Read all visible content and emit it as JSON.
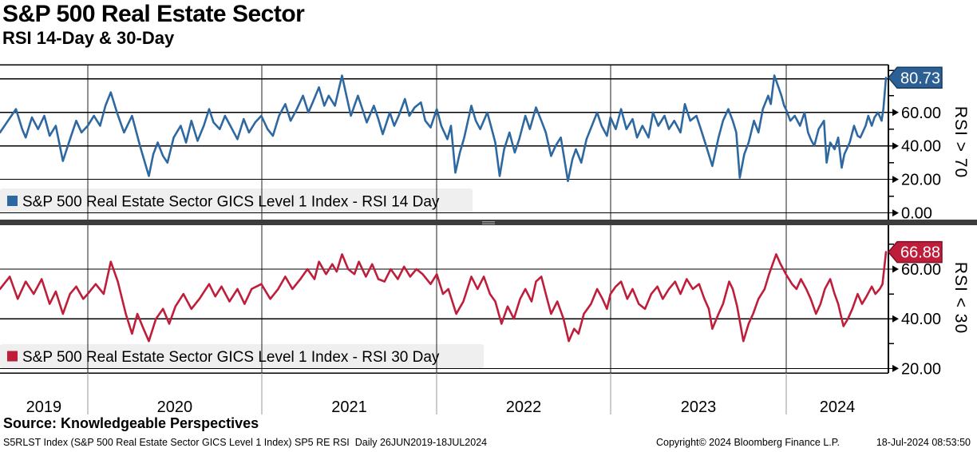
{
  "header": {
    "title": "S&P 500 Real Estate Sector",
    "subtitle": "RSI 14-Day & 30-Day"
  },
  "colors": {
    "rsi14_blue": "#2e68a0",
    "rsi14_badge": "#2c5f94",
    "rsi14_badge_border": "#123c66",
    "rsi30_red": "#bf1e3b",
    "rsi30_badge": "#bf1e3b",
    "rsi30_badge_border": "#7d0e24",
    "legend_bg": "#efefef",
    "divider": "#3c3c3c",
    "grid": "#000000"
  },
  "x_axis": {
    "year_labels": [
      "2019",
      "2020",
      "2021",
      "2022",
      "2023",
      "2024"
    ],
    "year_boundaries_t": [
      0.099,
      0.2955,
      0.4928,
      0.6892,
      0.8874
    ],
    "range": "26JUN2019-18JUL2024"
  },
  "chart_data": [
    {
      "type": "line",
      "id": "rsi14",
      "legend": "S&P 500 Real Estate Sector GICS Level 1 Index - RSI 14 Day",
      "color": "#2e68a0",
      "badge_color": "#2c5f94",
      "badge_border": "#123c66",
      "last_value": 80.73,
      "last_value_label": "80.73",
      "side_label": "RSI > 70",
      "ylim": [
        -4.5,
        88.5
      ],
      "yticks": [
        {
          "v": 0,
          "label": "0.00"
        },
        {
          "v": 20,
          "label": "20.00"
        },
        {
          "v": 40,
          "label": "40.00"
        },
        {
          "v": 60,
          "label": "60.00"
        },
        {
          "v": 80,
          "label": ""
        }
      ],
      "yticks_minor": [
        10,
        30,
        50,
        70,
        85
      ],
      "points": [
        [
          0.0,
          48
        ],
        [
          0.009,
          55
        ],
        [
          0.018,
          62
        ],
        [
          0.025,
          50
        ],
        [
          0.029,
          45
        ],
        [
          0.036,
          57
        ],
        [
          0.043,
          50
        ],
        [
          0.05,
          58
        ],
        [
          0.056,
          46
        ],
        [
          0.063,
          52
        ],
        [
          0.071,
          31
        ],
        [
          0.079,
          44
        ],
        [
          0.086,
          55
        ],
        [
          0.092,
          48
        ],
        [
          0.099,
          52
        ],
        [
          0.106,
          58
        ],
        [
          0.113,
          52
        ],
        [
          0.119,
          64
        ],
        [
          0.125,
          72
        ],
        [
          0.132,
          60
        ],
        [
          0.14,
          48
        ],
        [
          0.149,
          58
        ],
        [
          0.158,
          40
        ],
        [
          0.168,
          22
        ],
        [
          0.173,
          35
        ],
        [
          0.178,
          42
        ],
        [
          0.184,
          34
        ],
        [
          0.189,
          30
        ],
        [
          0.196,
          45
        ],
        [
          0.204,
          52
        ],
        [
          0.21,
          42
        ],
        [
          0.216,
          55
        ],
        [
          0.223,
          43
        ],
        [
          0.23,
          52
        ],
        [
          0.236,
          62
        ],
        [
          0.241,
          54
        ],
        [
          0.248,
          50
        ],
        [
          0.254,
          58
        ],
        [
          0.261,
          51
        ],
        [
          0.268,
          44
        ],
        [
          0.275,
          56
        ],
        [
          0.281,
          48
        ],
        [
          0.288,
          54
        ],
        [
          0.295,
          58
        ],
        [
          0.302,
          50
        ],
        [
          0.308,
          46
        ],
        [
          0.315,
          58
        ],
        [
          0.322,
          65
        ],
        [
          0.328,
          55
        ],
        [
          0.335,
          62
        ],
        [
          0.342,
          70
        ],
        [
          0.348,
          60
        ],
        [
          0.353,
          66
        ],
        [
          0.36,
          75
        ],
        [
          0.366,
          64
        ],
        [
          0.371,
          70
        ],
        [
          0.378,
          64
        ],
        [
          0.386,
          82
        ],
        [
          0.391,
          70
        ],
        [
          0.396,
          58
        ],
        [
          0.404,
          70
        ],
        [
          0.409,
          62
        ],
        [
          0.414,
          54
        ],
        [
          0.422,
          64
        ],
        [
          0.427,
          56
        ],
        [
          0.432,
          47
        ],
        [
          0.44,
          60
        ],
        [
          0.445,
          52
        ],
        [
          0.45,
          58
        ],
        [
          0.457,
          68
        ],
        [
          0.462,
          58
        ],
        [
          0.468,
          63
        ],
        [
          0.475,
          66
        ],
        [
          0.48,
          55
        ],
        [
          0.486,
          51
        ],
        [
          0.493,
          62
        ],
        [
          0.498,
          52
        ],
        [
          0.505,
          44
        ],
        [
          0.509,
          52
        ],
        [
          0.514,
          24
        ],
        [
          0.519,
          36
        ],
        [
          0.524,
          45
        ],
        [
          0.532,
          64
        ],
        [
          0.537,
          55
        ],
        [
          0.542,
          50
        ],
        [
          0.55,
          60
        ],
        [
          0.555,
          50
        ],
        [
          0.559,
          42
        ],
        [
          0.564,
          22
        ],
        [
          0.569,
          38
        ],
        [
          0.575,
          48
        ],
        [
          0.581,
          36
        ],
        [
          0.586,
          44
        ],
        [
          0.593,
          58
        ],
        [
          0.598,
          50
        ],
        [
          0.605,
          63
        ],
        [
          0.611,
          55
        ],
        [
          0.616,
          48
        ],
        [
          0.622,
          34
        ],
        [
          0.627,
          40
        ],
        [
          0.633,
          45
        ],
        [
          0.641,
          19
        ],
        [
          0.646,
          32
        ],
        [
          0.65,
          38
        ],
        [
          0.656,
          30
        ],
        [
          0.662,
          44
        ],
        [
          0.668,
          52
        ],
        [
          0.674,
          60
        ],
        [
          0.679,
          52
        ],
        [
          0.685,
          46
        ],
        [
          0.689,
          57
        ],
        [
          0.695,
          50
        ],
        [
          0.701,
          62
        ],
        [
          0.707,
          50
        ],
        [
          0.714,
          56
        ],
        [
          0.719,
          45
        ],
        [
          0.725,
          52
        ],
        [
          0.732,
          45
        ],
        [
          0.737,
          60
        ],
        [
          0.743,
          52
        ],
        [
          0.75,
          58
        ],
        [
          0.755,
          50
        ],
        [
          0.761,
          55
        ],
        [
          0.768,
          48
        ],
        [
          0.773,
          65
        ],
        [
          0.779,
          55
        ],
        [
          0.786,
          58
        ],
        [
          0.791,
          50
        ],
        [
          0.797,
          40
        ],
        [
          0.804,
          28
        ],
        [
          0.811,
          45
        ],
        [
          0.816,
          55
        ],
        [
          0.822,
          62
        ],
        [
          0.827,
          55
        ],
        [
          0.831,
          48
        ],
        [
          0.835,
          21
        ],
        [
          0.84,
          35
        ],
        [
          0.845,
          42
        ],
        [
          0.851,
          55
        ],
        [
          0.856,
          48
        ],
        [
          0.861,
          62
        ],
        [
          0.867,
          70
        ],
        [
          0.87,
          65
        ],
        [
          0.874,
          82
        ],
        [
          0.878,
          76
        ],
        [
          0.882,
          70
        ],
        [
          0.885,
          64
        ],
        [
          0.887,
          62
        ],
        [
          0.892,
          55
        ],
        [
          0.897,
          58
        ],
        [
          0.903,
          52
        ],
        [
          0.908,
          60
        ],
        [
          0.912,
          48
        ],
        [
          0.915,
          44
        ],
        [
          0.919,
          40
        ],
        [
          0.924,
          50
        ],
        [
          0.93,
          55
        ],
        [
          0.933,
          30
        ],
        [
          0.937,
          42
        ],
        [
          0.942,
          38
        ],
        [
          0.946,
          45
        ],
        [
          0.95,
          27
        ],
        [
          0.953,
          35
        ],
        [
          0.959,
          42
        ],
        [
          0.964,
          52
        ],
        [
          0.968,
          46
        ],
        [
          0.971,
          45
        ],
        [
          0.977,
          52
        ],
        [
          0.98,
          58
        ],
        [
          0.984,
          52
        ],
        [
          0.987,
          57
        ],
        [
          0.991,
          60
        ],
        [
          0.995,
          55
        ],
        [
          0.997,
          62
        ],
        [
          1.0,
          80.73
        ]
      ]
    },
    {
      "type": "line",
      "id": "rsi30",
      "legend": "S&P 500 Real Estate Sector GICS Level 1 Index - RSI 30 Day",
      "color": "#bf1e3b",
      "badge_color": "#bf1e3b",
      "badge_border": "#7d0e24",
      "last_value": 66.88,
      "last_value_label": "66.88",
      "side_label": "RSI < 30",
      "ylim": [
        18.2,
        77.7
      ],
      "yticks": [
        {
          "v": 20,
          "label": "20.00"
        },
        {
          "v": 40,
          "label": "40.00"
        },
        {
          "v": 60,
          "label": "60.00"
        }
      ],
      "yticks_minor": [
        30,
        50,
        70
      ],
      "points": [
        [
          0.0,
          52
        ],
        [
          0.011,
          57
        ],
        [
          0.02,
          48
        ],
        [
          0.029,
          55
        ],
        [
          0.038,
          50
        ],
        [
          0.047,
          56
        ],
        [
          0.056,
          46
        ],
        [
          0.063,
          51
        ],
        [
          0.071,
          42
        ],
        [
          0.079,
          50
        ],
        [
          0.086,
          53
        ],
        [
          0.094,
          48
        ],
        [
          0.099,
          50
        ],
        [
          0.108,
          54
        ],
        [
          0.117,
          50
        ],
        [
          0.125,
          63
        ],
        [
          0.133,
          55
        ],
        [
          0.142,
          42
        ],
        [
          0.149,
          34
        ],
        [
          0.155,
          42
        ],
        [
          0.162,
          36
        ],
        [
          0.168,
          31
        ],
        [
          0.176,
          40
        ],
        [
          0.184,
          44
        ],
        [
          0.191,
          38
        ],
        [
          0.198,
          45
        ],
        [
          0.207,
          50
        ],
        [
          0.216,
          44
        ],
        [
          0.225,
          48
        ],
        [
          0.236,
          54
        ],
        [
          0.243,
          49
        ],
        [
          0.25,
          53
        ],
        [
          0.259,
          47
        ],
        [
          0.268,
          52
        ],
        [
          0.276,
          46
        ],
        [
          0.284,
          52
        ],
        [
          0.295,
          54
        ],
        [
          0.305,
          48
        ],
        [
          0.314,
          52
        ],
        [
          0.322,
          57
        ],
        [
          0.33,
          52
        ],
        [
          0.339,
          56
        ],
        [
          0.347,
          60
        ],
        [
          0.355,
          56
        ],
        [
          0.36,
          63
        ],
        [
          0.368,
          58
        ],
        [
          0.375,
          62
        ],
        [
          0.38,
          59
        ],
        [
          0.386,
          66
        ],
        [
          0.393,
          60
        ],
        [
          0.4,
          58
        ],
        [
          0.405,
          63
        ],
        [
          0.413,
          57
        ],
        [
          0.42,
          62
        ],
        [
          0.427,
          56
        ],
        [
          0.434,
          55
        ],
        [
          0.441,
          60
        ],
        [
          0.449,
          56
        ],
        [
          0.456,
          61
        ],
        [
          0.463,
          57
        ],
        [
          0.47,
          60
        ],
        [
          0.477,
          58
        ],
        [
          0.486,
          54
        ],
        [
          0.493,
          58
        ],
        [
          0.5,
          50
        ],
        [
          0.506,
          52
        ],
        [
          0.515,
          42
        ],
        [
          0.523,
          47
        ],
        [
          0.532,
          57
        ],
        [
          0.539,
          52
        ],
        [
          0.546,
          57
        ],
        [
          0.553,
          50
        ],
        [
          0.559,
          47
        ],
        [
          0.566,
          38
        ],
        [
          0.573,
          45
        ],
        [
          0.58,
          40
        ],
        [
          0.587,
          48
        ],
        [
          0.593,
          52
        ],
        [
          0.6,
          47
        ],
        [
          0.605,
          55
        ],
        [
          0.611,
          57
        ],
        [
          0.616,
          50
        ],
        [
          0.622,
          42
        ],
        [
          0.629,
          47
        ],
        [
          0.636,
          40
        ],
        [
          0.642,
          31
        ],
        [
          0.648,
          36
        ],
        [
          0.653,
          34
        ],
        [
          0.659,
          42
        ],
        [
          0.667,
          46
        ],
        [
          0.674,
          52
        ],
        [
          0.68,
          48
        ],
        [
          0.685,
          44
        ],
        [
          0.689,
          50
        ],
        [
          0.695,
          53
        ],
        [
          0.701,
          55
        ],
        [
          0.708,
          48
        ],
        [
          0.714,
          52
        ],
        [
          0.721,
          46
        ],
        [
          0.728,
          44
        ],
        [
          0.735,
          50
        ],
        [
          0.742,
          53
        ],
        [
          0.748,
          48
        ],
        [
          0.755,
          52
        ],
        [
          0.762,
          55
        ],
        [
          0.768,
          50
        ],
        [
          0.775,
          56
        ],
        [
          0.782,
          52
        ],
        [
          0.789,
          54
        ],
        [
          0.795,
          48
        ],
        [
          0.8,
          44
        ],
        [
          0.804,
          36
        ],
        [
          0.811,
          42
        ],
        [
          0.816,
          46
        ],
        [
          0.823,
          55
        ],
        [
          0.827,
          52
        ],
        [
          0.832,
          45
        ],
        [
          0.839,
          31
        ],
        [
          0.845,
          38
        ],
        [
          0.85,
          42
        ],
        [
          0.856,
          48
        ],
        [
          0.863,
          52
        ],
        [
          0.868,
          58
        ],
        [
          0.876,
          66
        ],
        [
          0.881,
          62
        ],
        [
          0.887,
          58
        ],
        [
          0.894,
          54
        ],
        [
          0.899,
          52
        ],
        [
          0.904,
          56
        ],
        [
          0.91,
          52
        ],
        [
          0.915,
          48
        ],
        [
          0.921,
          42
        ],
        [
          0.926,
          46
        ],
        [
          0.931,
          52
        ],
        [
          0.937,
          56
        ],
        [
          0.942,
          50
        ],
        [
          0.946,
          46
        ],
        [
          0.952,
          37
        ],
        [
          0.957,
          40
        ],
        [
          0.962,
          44
        ],
        [
          0.968,
          50
        ],
        [
          0.973,
          46
        ],
        [
          0.978,
          49
        ],
        [
          0.984,
          53
        ],
        [
          0.988,
          50
        ],
        [
          0.993,
          52
        ],
        [
          0.996,
          54
        ],
        [
          1.0,
          66.88
        ]
      ]
    }
  ],
  "footer": {
    "source": "Source: Knowledgeable Perspectives",
    "ticker_line": "S5RLST Index (S&P 500 Real Estate Sector GICS Level 1 Index) SP5 RE RSI  Daily 26JUN2019-18JUL2024",
    "copyright": "Copyright© 2024 Bloomberg Finance L.P.",
    "timestamp": "18-Jul-2024 08:53:50"
  }
}
